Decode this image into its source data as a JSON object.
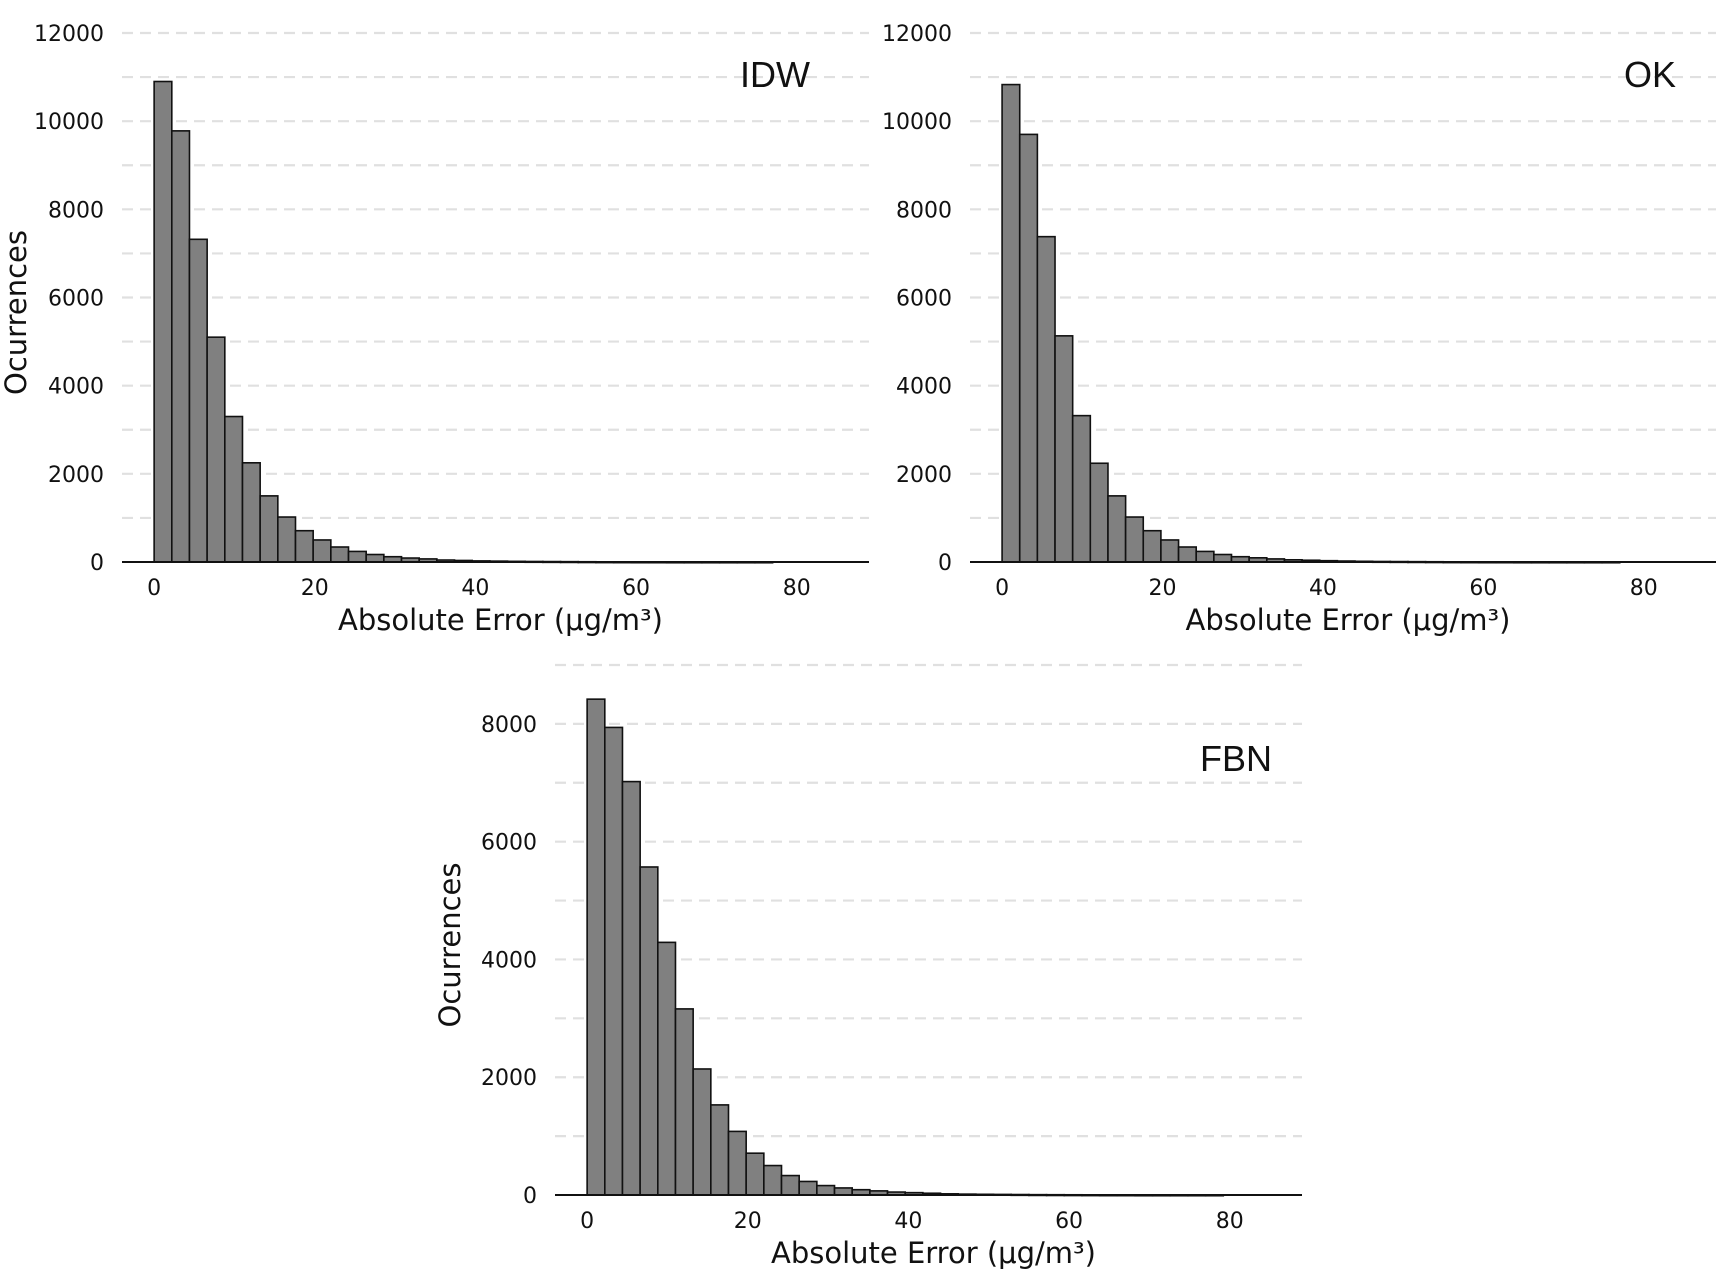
{
  "style": {
    "bar_fill": "#808080",
    "bar_edge": "#111111",
    "grid_color": "#e0e0e0",
    "axis_color": "#111111"
  },
  "chart_data": [
    {
      "type": "bar",
      "panel_label": "IDW",
      "xlabel": "Absolute Error (μg/m³)",
      "ylabel": "Ocurrences",
      "xlim": [
        -4,
        89
      ],
      "ylim": [
        0,
        12000
      ],
      "xticks": [
        0,
        20,
        40,
        60,
        80
      ],
      "yticks": [
        0,
        2000,
        4000,
        6000,
        8000,
        10000,
        12000
      ],
      "grid": "horizontal dashed",
      "bin_width": 2.2,
      "bin_start": 0,
      "values": [
        10900,
        9780,
        7320,
        5100,
        3300,
        2250,
        1500,
        1020,
        710,
        500,
        340,
        240,
        170,
        120,
        90,
        70,
        45,
        35,
        25,
        20,
        15,
        12,
        10,
        8,
        6,
        4,
        3,
        2,
        2,
        1,
        1,
        1,
        1,
        1,
        1,
        0,
        0,
        0,
        0
      ]
    },
    {
      "type": "bar",
      "panel_label": "OK",
      "xlabel": "Absolute Error (μg/m³)",
      "ylabel": "",
      "xlim": [
        -4,
        89
      ],
      "ylim": [
        0,
        12000
      ],
      "xticks": [
        0,
        20,
        40,
        60,
        80
      ],
      "yticks": [
        0,
        2000,
        4000,
        6000,
        8000,
        10000,
        12000
      ],
      "grid": "horizontal dashed",
      "bin_width": 2.2,
      "bin_start": 0,
      "values": [
        10830,
        9700,
        7380,
        5130,
        3320,
        2240,
        1500,
        1020,
        710,
        500,
        340,
        240,
        170,
        120,
        95,
        70,
        50,
        40,
        30,
        22,
        16,
        12,
        10,
        8,
        6,
        4,
        3,
        2,
        2,
        1,
        1,
        1,
        1,
        1,
        1,
        0,
        0,
        0,
        0
      ]
    },
    {
      "type": "bar",
      "panel_label": "FBN",
      "xlabel": "Absolute Error (μg/m³)",
      "ylabel": "Ocurrences",
      "xlim": [
        -4,
        89
      ],
      "ylim": [
        0,
        9000
      ],
      "xticks": [
        0,
        20,
        40,
        60,
        80
      ],
      "yticks": [
        0,
        2000,
        4000,
        6000,
        8000
      ],
      "grid": "horizontal dashed",
      "bin_width": 2.2,
      "bin_start": 0,
      "values": [
        8420,
        7940,
        7020,
        5570,
        4290,
        3160,
        2140,
        1530,
        1080,
        710,
        500,
        330,
        230,
        160,
        120,
        90,
        70,
        50,
        40,
        30,
        20,
        15,
        12,
        10,
        8,
        6,
        5,
        4,
        3,
        2,
        2,
        1,
        1,
        1,
        1,
        1,
        0,
        0,
        0
      ]
    }
  ]
}
